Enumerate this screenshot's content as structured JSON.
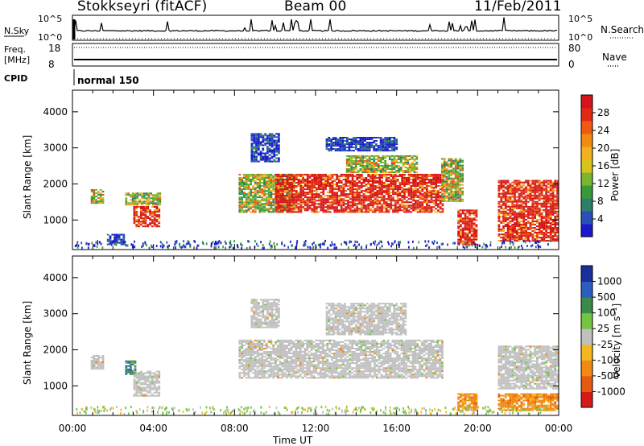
{
  "header": {
    "station": "Stokkseyri (fitACF)",
    "beam": "Beam 00",
    "date": "11/Feb/2011"
  },
  "top_panels": {
    "nsky_label": "N.Sky",
    "nsky_ticks": [
      "10^5",
      "10^0"
    ],
    "nsearch_label": "N.Search",
    "freq_label_1": "Freq.",
    "freq_label_2": "[MHz]",
    "freq_ticks": [
      "18",
      "8"
    ],
    "nave_label": "Nave",
    "nave_ticks": [
      "80",
      "0"
    ],
    "cpid_label": "CPID",
    "cpid_value": "normal 150"
  },
  "chart_data": [
    {
      "type": "heatmap",
      "name": "power",
      "xlabel": "",
      "ylabel": "Slant Range [km]",
      "x_ticks": [],
      "y_ticks": [
        "1000",
        "2000",
        "3000",
        "4000"
      ],
      "xlim_hours": [
        0,
        24
      ],
      "ylim_km": [
        180,
        4600
      ],
      "colorbar": {
        "label": "Power [dB]",
        "ticks": [
          "4",
          "8",
          "12",
          "16",
          "20",
          "24",
          "28"
        ],
        "colors": [
          "#1a1acc",
          "#2a4fb8",
          "#2e7e6a",
          "#3a9a3a",
          "#79b52f",
          "#d8c21e",
          "#f0b020",
          "#f08a14",
          "#ee5a12",
          "#e02a14",
          "#d4141a"
        ]
      },
      "regions": [
        {
          "t": [
            0.9,
            1.6
          ],
          "r": [
            1450,
            1850
          ],
          "level": "mid"
        },
        {
          "t": [
            1.7,
            2.6
          ],
          "r": [
            300,
            600
          ],
          "level": "low"
        },
        {
          "t": [
            2.6,
            4.4
          ],
          "r": [
            1400,
            1750
          ],
          "level": "mid"
        },
        {
          "t": [
            3.0,
            4.3
          ],
          "r": [
            800,
            1400
          ],
          "level": "high"
        },
        {
          "t": [
            8.8,
            10.2
          ],
          "r": [
            2600,
            3400
          ],
          "level": "low"
        },
        {
          "t": [
            8.2,
            11.0
          ],
          "r": [
            1200,
            2300
          ],
          "level": "mid"
        },
        {
          "t": [
            10.0,
            18.3
          ],
          "r": [
            1200,
            2300
          ],
          "level": "high"
        },
        {
          "t": [
            13.5,
            17.0
          ],
          "r": [
            2300,
            2800
          ],
          "level": "mid"
        },
        {
          "t": [
            12.5,
            16.0
          ],
          "r": [
            2900,
            3300
          ],
          "level": "low"
        },
        {
          "t": [
            18.2,
            19.3
          ],
          "r": [
            1500,
            2700
          ],
          "level": "mid"
        },
        {
          "t": [
            19.0,
            20.0
          ],
          "r": [
            300,
            1300
          ],
          "level": "high"
        },
        {
          "t": [
            21.0,
            24.0
          ],
          "r": [
            400,
            2100
          ],
          "level": "high"
        }
      ]
    },
    {
      "type": "heatmap",
      "name": "velocity",
      "xlabel": "Time UT",
      "ylabel": "Slant Range [km]",
      "x_ticks": [
        "00:00",
        "04:00",
        "08:00",
        "12:00",
        "16:00",
        "20:00",
        "00:00"
      ],
      "y_ticks": [
        "1000",
        "2000",
        "3000",
        "4000"
      ],
      "xlim_hours": [
        0,
        24
      ],
      "ylim_km": [
        180,
        4600
      ],
      "colorbar": {
        "label": "Velocity [m s⁻¹]",
        "ticks": [
          "1000",
          "500",
          "100",
          "25",
          "-25",
          "-100",
          "-500",
          "-1000"
        ],
        "colors": [
          "#1a2f9a",
          "#2d5dbd",
          "#3b8a49",
          "#74c544",
          "#c0c0c0",
          "#f4b722",
          "#f08a14",
          "#e45a12",
          "#d51a18"
        ]
      },
      "regions": [
        {
          "t": [
            0.9,
            1.6
          ],
          "r": [
            1450,
            1850
          ],
          "level": "ground"
        },
        {
          "t": [
            2.6,
            3.2
          ],
          "r": [
            1300,
            1700
          ],
          "level": "pos"
        },
        {
          "t": [
            3.0,
            4.3
          ],
          "r": [
            700,
            1400
          ],
          "level": "ground"
        },
        {
          "t": [
            8.2,
            18.3
          ],
          "r": [
            1200,
            2300
          ],
          "level": "ground"
        },
        {
          "t": [
            8.8,
            10.2
          ],
          "r": [
            2600,
            3400
          ],
          "level": "ground"
        },
        {
          "t": [
            12.5,
            16.5
          ],
          "r": [
            2400,
            3300
          ],
          "level": "ground"
        },
        {
          "t": [
            19.0,
            20.0
          ],
          "r": [
            300,
            800
          ],
          "level": "neg"
        },
        {
          "t": [
            21.0,
            24.0
          ],
          "r": [
            300,
            800
          ],
          "level": "neg"
        },
        {
          "t": [
            21.0,
            24.0
          ],
          "r": [
            900,
            2100
          ],
          "level": "ground"
        }
      ]
    }
  ]
}
